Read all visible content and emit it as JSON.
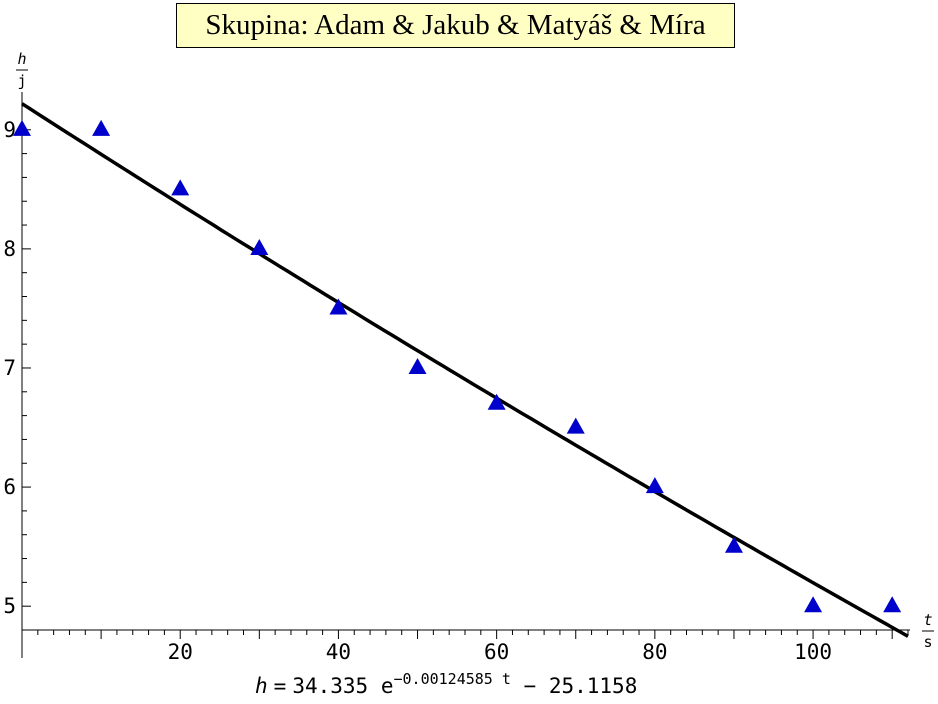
{
  "chart_data": {
    "type": "scatter",
    "title": "Skupina: Adam & Jakub & Matyáš & Míra",
    "xlim": [
      0,
      112
    ],
    "ylim": [
      4.8,
      9.25
    ],
    "x_ticks": [
      20,
      40,
      60,
      80,
      100
    ],
    "y_ticks": [
      5,
      6,
      7,
      8,
      9
    ],
    "x_unit": {
      "numerator": "t",
      "denominator": "s"
    },
    "y_unit": {
      "numerator": "h",
      "denominator": "j"
    },
    "grid": false,
    "marker_color": "#0000cc",
    "fit_line_color": "#000000",
    "series": [
      {
        "marker": "triangle",
        "x": [
          0,
          10,
          20,
          30,
          40,
          50,
          60,
          70,
          80,
          90,
          100,
          110
        ],
        "y": [
          9.0,
          9.0,
          8.5,
          8.0,
          7.5,
          7.0,
          6.7,
          6.5,
          6.0,
          5.5,
          5.0,
          5.0
        ]
      }
    ],
    "fit": {
      "a": 34.335,
      "b": -0.00124585,
      "c": -25.1158,
      "formula": {
        "lhs": "h",
        "eq": "=",
        "coef": "34.335",
        "base": "e",
        "exponent": "−0.00124585 t",
        "tail": "− 25.1158"
      }
    }
  }
}
